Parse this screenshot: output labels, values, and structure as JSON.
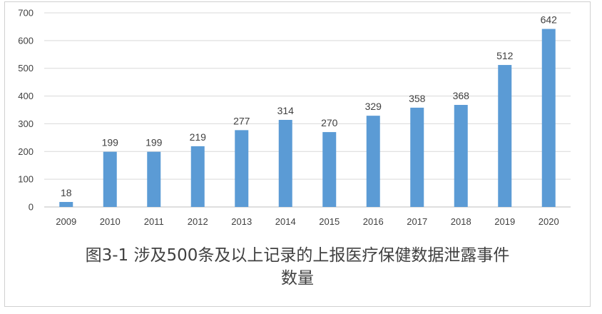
{
  "chart_data": {
    "type": "bar",
    "categories": [
      "2009",
      "2010",
      "2011",
      "2012",
      "2013",
      "2014",
      "2015",
      "2016",
      "2017",
      "2018",
      "2019",
      "2020"
    ],
    "values": [
      18,
      199,
      199,
      219,
      277,
      314,
      270,
      329,
      358,
      368,
      512,
      642
    ],
    "ylim": [
      0,
      700
    ],
    "yticks": [
      0,
      100,
      200,
      300,
      400,
      500,
      600,
      700
    ],
    "grid": true,
    "legend": "none",
    "data_labels": true,
    "bar_color": "#5b9bd5"
  },
  "caption": {
    "line1": "图3-1 涉及500条及以上记录的上报医疗保健数据泄露事件",
    "line2": "数量"
  }
}
